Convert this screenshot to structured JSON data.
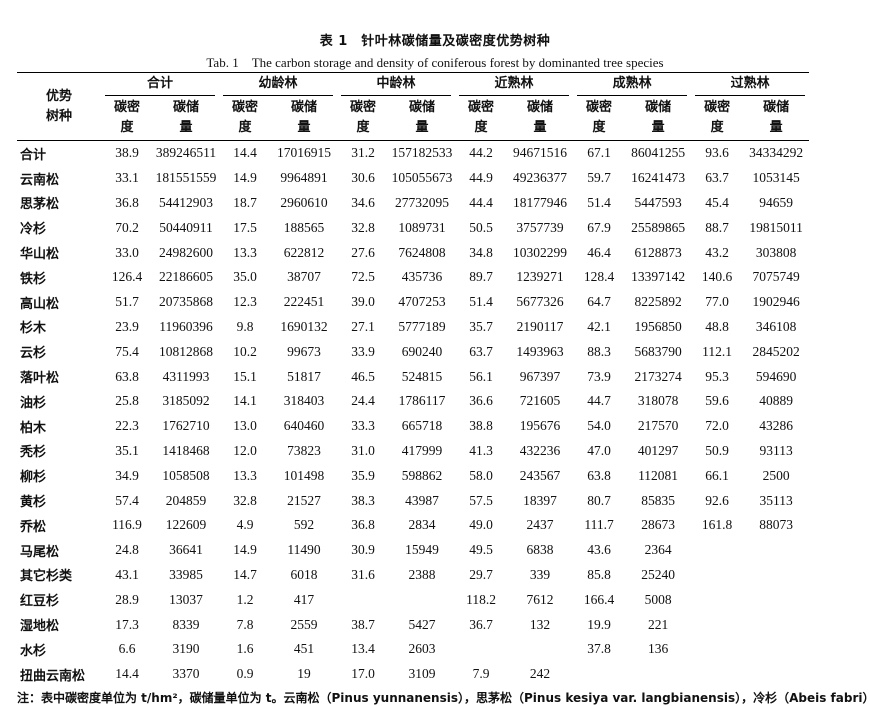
{
  "title_cn": "表 1　针叶林碳储量及碳密度优势树种",
  "title_en": "Tab. 1　The carbon storage and density of coniferous forest by dominanted tree species",
  "header": {
    "species": "优势\n树种",
    "groups": [
      "合计",
      "幼龄林",
      "中龄林",
      "近熟林",
      "成熟林",
      "过熟林"
    ],
    "density": "碳密\n度",
    "storage": "碳储\n量"
  },
  "rows": [
    {
      "species": "合计",
      "values": [
        "38.9",
        "389246511",
        "14.4",
        "17016915",
        "31.2",
        "157182533",
        "44.2",
        "94671516",
        "67.1",
        "86041255",
        "93.6",
        "34334292"
      ]
    },
    {
      "species": "云南松",
      "values": [
        "33.1",
        "181551559",
        "14.9",
        "9964891",
        "30.6",
        "105055673",
        "44.9",
        "49236377",
        "59.7",
        "16241473",
        "63.7",
        "1053145"
      ]
    },
    {
      "species": "思茅松",
      "values": [
        "36.8",
        "54412903",
        "18.7",
        "2960610",
        "34.6",
        "27732095",
        "44.4",
        "18177946",
        "51.4",
        "5447593",
        "45.4",
        "94659"
      ]
    },
    {
      "species": "冷杉",
      "values": [
        "70.2",
        "50440911",
        "17.5",
        "188565",
        "32.8",
        "1089731",
        "50.5",
        "3757739",
        "67.9",
        "25589865",
        "88.7",
        "19815011"
      ]
    },
    {
      "species": "华山松",
      "values": [
        "33.0",
        "24982600",
        "13.3",
        "622812",
        "27.6",
        "7624808",
        "34.8",
        "10302299",
        "46.4",
        "6128873",
        "43.2",
        "303808"
      ]
    },
    {
      "species": "铁杉",
      "values": [
        "126.4",
        "22186605",
        "35.0",
        "38707",
        "72.5",
        "435736",
        "89.7",
        "1239271",
        "128.4",
        "13397142",
        "140.6",
        "7075749"
      ]
    },
    {
      "species": "高山松",
      "values": [
        "51.7",
        "20735868",
        "12.3",
        "222451",
        "39.0",
        "4707253",
        "51.4",
        "5677326",
        "64.7",
        "8225892",
        "77.0",
        "1902946"
      ]
    },
    {
      "species": "杉木",
      "values": [
        "23.9",
        "11960396",
        "9.8",
        "1690132",
        "27.1",
        "5777189",
        "35.7",
        "2190117",
        "42.1",
        "1956850",
        "48.8",
        "346108"
      ]
    },
    {
      "species": "云杉",
      "values": [
        "75.4",
        "10812868",
        "10.2",
        "99673",
        "33.9",
        "690240",
        "63.7",
        "1493963",
        "88.3",
        "5683790",
        "112.1",
        "2845202"
      ]
    },
    {
      "species": "落叶松",
      "values": [
        "63.8",
        "4311993",
        "15.1",
        "51817",
        "46.5",
        "524815",
        "56.1",
        "967397",
        "73.9",
        "2173274",
        "95.3",
        "594690"
      ]
    },
    {
      "species": "油杉",
      "values": [
        "25.8",
        "3185092",
        "14.1",
        "318403",
        "24.4",
        "1786117",
        "36.6",
        "721605",
        "44.7",
        "318078",
        "59.6",
        "40889"
      ]
    },
    {
      "species": "柏木",
      "values": [
        "22.3",
        "1762710",
        "13.0",
        "640460",
        "33.3",
        "665718",
        "38.8",
        "195676",
        "54.0",
        "217570",
        "72.0",
        "43286"
      ]
    },
    {
      "species": "秃杉",
      "values": [
        "35.1",
        "1418468",
        "12.0",
        "73823",
        "31.0",
        "417999",
        "41.3",
        "432236",
        "47.0",
        "401297",
        "50.9",
        "93113"
      ]
    },
    {
      "species": "柳杉",
      "values": [
        "34.9",
        "1058508",
        "13.3",
        "101498",
        "35.9",
        "598862",
        "58.0",
        "243567",
        "63.8",
        "112081",
        "66.1",
        "2500"
      ]
    },
    {
      "species": "黄杉",
      "values": [
        "57.4",
        "204859",
        "32.8",
        "21527",
        "38.3",
        "43987",
        "57.5",
        "18397",
        "80.7",
        "85835",
        "92.6",
        "35113"
      ]
    },
    {
      "species": "乔松",
      "values": [
        "116.9",
        "122609",
        "4.9",
        "592",
        "36.8",
        "2834",
        "49.0",
        "2437",
        "111.7",
        "28673",
        "161.8",
        "88073"
      ]
    },
    {
      "species": "马尾松",
      "values": [
        "24.8",
        "36641",
        "14.9",
        "11490",
        "30.9",
        "15949",
        "49.5",
        "6838",
        "43.6",
        "2364",
        "",
        ""
      ]
    },
    {
      "species": "其它杉类",
      "values": [
        "43.1",
        "33985",
        "14.7",
        "6018",
        "31.6",
        "2388",
        "29.7",
        "339",
        "85.8",
        "25240",
        "",
        ""
      ]
    },
    {
      "species": "红豆杉",
      "values": [
        "28.9",
        "13037",
        "1.2",
        "417",
        "",
        "",
        "118.2",
        "7612",
        "166.4",
        "5008",
        "",
        ""
      ]
    },
    {
      "species": "湿地松",
      "values": [
        "17.3",
        "8339",
        "7.8",
        "2559",
        "38.7",
        "5427",
        "36.7",
        "132",
        "19.9",
        "221",
        "",
        ""
      ]
    },
    {
      "species": "水杉",
      "values": [
        "6.6",
        "3190",
        "1.6",
        "451",
        "13.4",
        "2603",
        "",
        "",
        "37.8",
        "136",
        "",
        ""
      ]
    },
    {
      "species": "扭曲云南松",
      "values": [
        "14.4",
        "3370",
        "0.9",
        "19",
        "17.0",
        "3109",
        "7.9",
        "242",
        "",
        "",
        "",
        ""
      ]
    }
  ],
  "note": "注：表中碳密度单位为 t/hm²，碳储量单位为 t。云南松（Pinus yunnanensis），思茅松（Pinus kesiya var. langbianensis），冷杉（Abeis fabri）"
}
